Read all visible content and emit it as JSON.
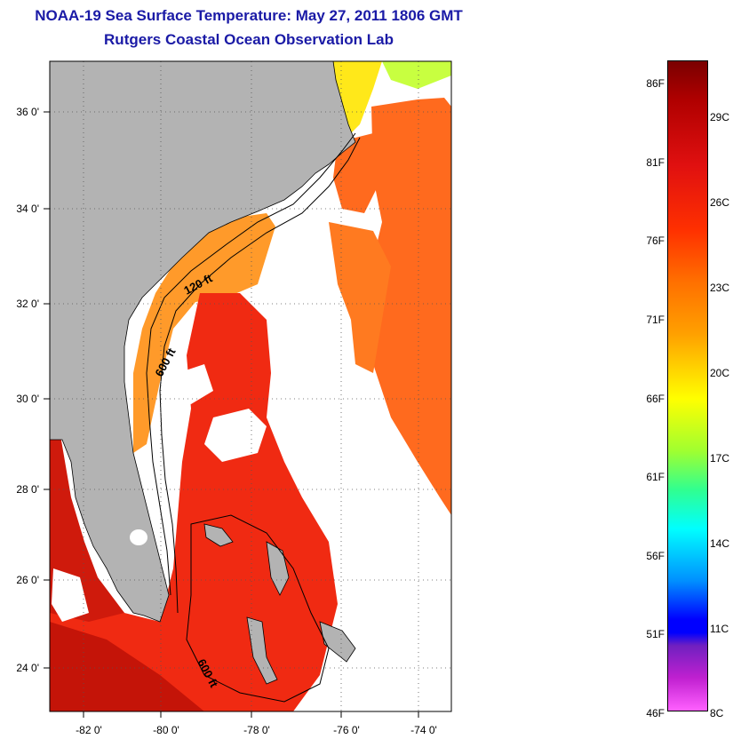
{
  "header": {
    "title": "NOAA-19 Sea Surface Temperature:  May 27, 2011 1806 GMT",
    "subtitle": "Rutgers Coastal Ocean Observation Lab"
  },
  "map": {
    "lat_ticks": [
      {
        "value": 36,
        "label": "36 0'"
      },
      {
        "value": 34,
        "label": "34 0'"
      },
      {
        "value": 32,
        "label": "32 0'"
      },
      {
        "value": 30,
        "label": "30 0'"
      },
      {
        "value": 28,
        "label": "28 0'"
      },
      {
        "value": 26,
        "label": "26 0'"
      },
      {
        "value": 24,
        "label": "24 0'"
      }
    ],
    "lon_ticks": [
      {
        "value": -82,
        "label": "-82 0'"
      },
      {
        "value": -80,
        "label": "-80 0'"
      },
      {
        "value": -78,
        "label": "-78 0'"
      },
      {
        "value": -76,
        "label": "-76 0'"
      },
      {
        "value": -74,
        "label": "-74 0'"
      }
    ],
    "depth_labels": {
      "shelf_120": "120 ft",
      "slope_600_north": "600 ft",
      "slope_600_south": "600 ft"
    },
    "colors": {
      "land": "#b3b3b3",
      "water_warm": "#ff5a1a",
      "water_hot": "#e01e10",
      "water_shelf": "#ff9b2a",
      "nodata": "#ffffff"
    }
  },
  "colorbar": {
    "fahrenheit": [
      "86F",
      "81F",
      "76F",
      "71F",
      "66F",
      "61F",
      "56F",
      "51F",
      "46F"
    ],
    "celsius": [
      "29C",
      "26C",
      "23C",
      "20C",
      "17C",
      "14C",
      "11C",
      "8C"
    ]
  }
}
